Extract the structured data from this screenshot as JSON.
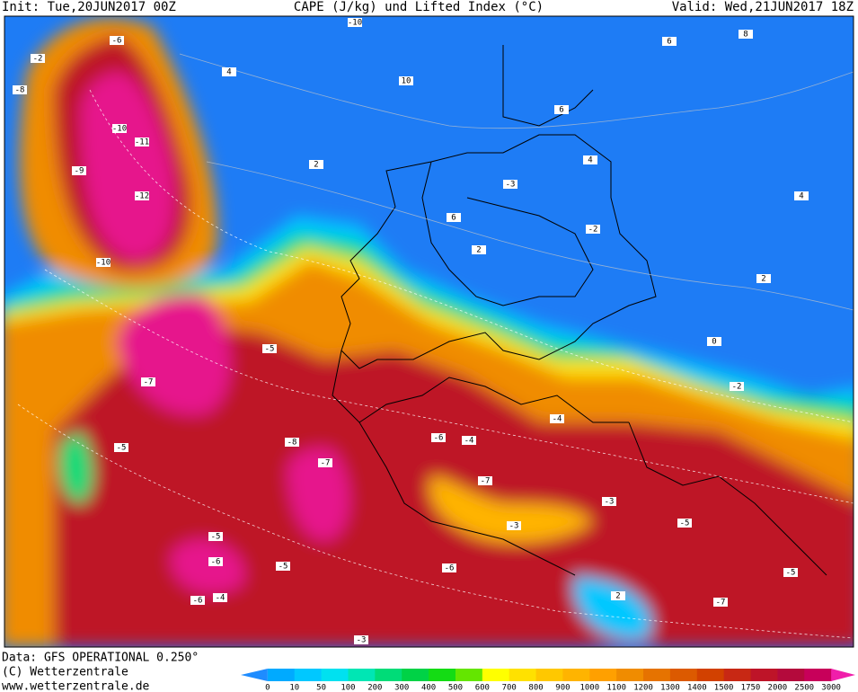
{
  "header": {
    "init": "Init: Tue,20JUN2017 00Z",
    "title": "CAPE (J/kg) und Lifted Index (°C)",
    "valid": "Valid: Wed,21JUN2017 18Z"
  },
  "footer": {
    "data": "Data: GFS OPERATIONAL 0.250°",
    "copyright": "(C) Wetterzentrale",
    "url": "www.wetterzentrale.de"
  },
  "colorbar": {
    "labels": [
      "0",
      "10",
      "50",
      "100",
      "200",
      "300",
      "400",
      "500",
      "600",
      "700",
      "800",
      "900",
      "1000",
      "1100",
      "1200",
      "1300",
      "1400",
      "1500",
      "1750",
      "2000",
      "2500",
      "3000"
    ],
    "colors": [
      "#1e8cff",
      "#00aaff",
      "#00c8ff",
      "#00e1f0",
      "#00e6b4",
      "#00dc78",
      "#00d246",
      "#14dc14",
      "#64e600",
      "#ffff00",
      "#ffe100",
      "#ffc800",
      "#ffb400",
      "#ffa000",
      "#f08c00",
      "#e67300",
      "#dc5a00",
      "#d24100",
      "#c82814",
      "#be1428",
      "#b40a3c",
      "#c8005a",
      "#f01eaa"
    ]
  },
  "map": {
    "contour_labels": [
      "-10",
      "-6",
      "4",
      "2",
      "10",
      "6",
      "-2",
      "-8",
      "-10",
      "-11",
      "-12",
      "-9",
      "-10",
      "-5",
      "-7",
      "-8",
      "-5",
      "-6",
      "-4",
      "-3",
      "-5",
      "-6",
      "-7",
      "-5",
      "-4",
      "-3",
      "-2",
      "0",
      "2",
      "4",
      "6",
      "8",
      "4",
      "6",
      "2",
      "-6",
      "-7",
      "-3",
      "-5",
      "-4",
      "-2",
      "2",
      "-5",
      "-6",
      "-7",
      "-3"
    ]
  }
}
